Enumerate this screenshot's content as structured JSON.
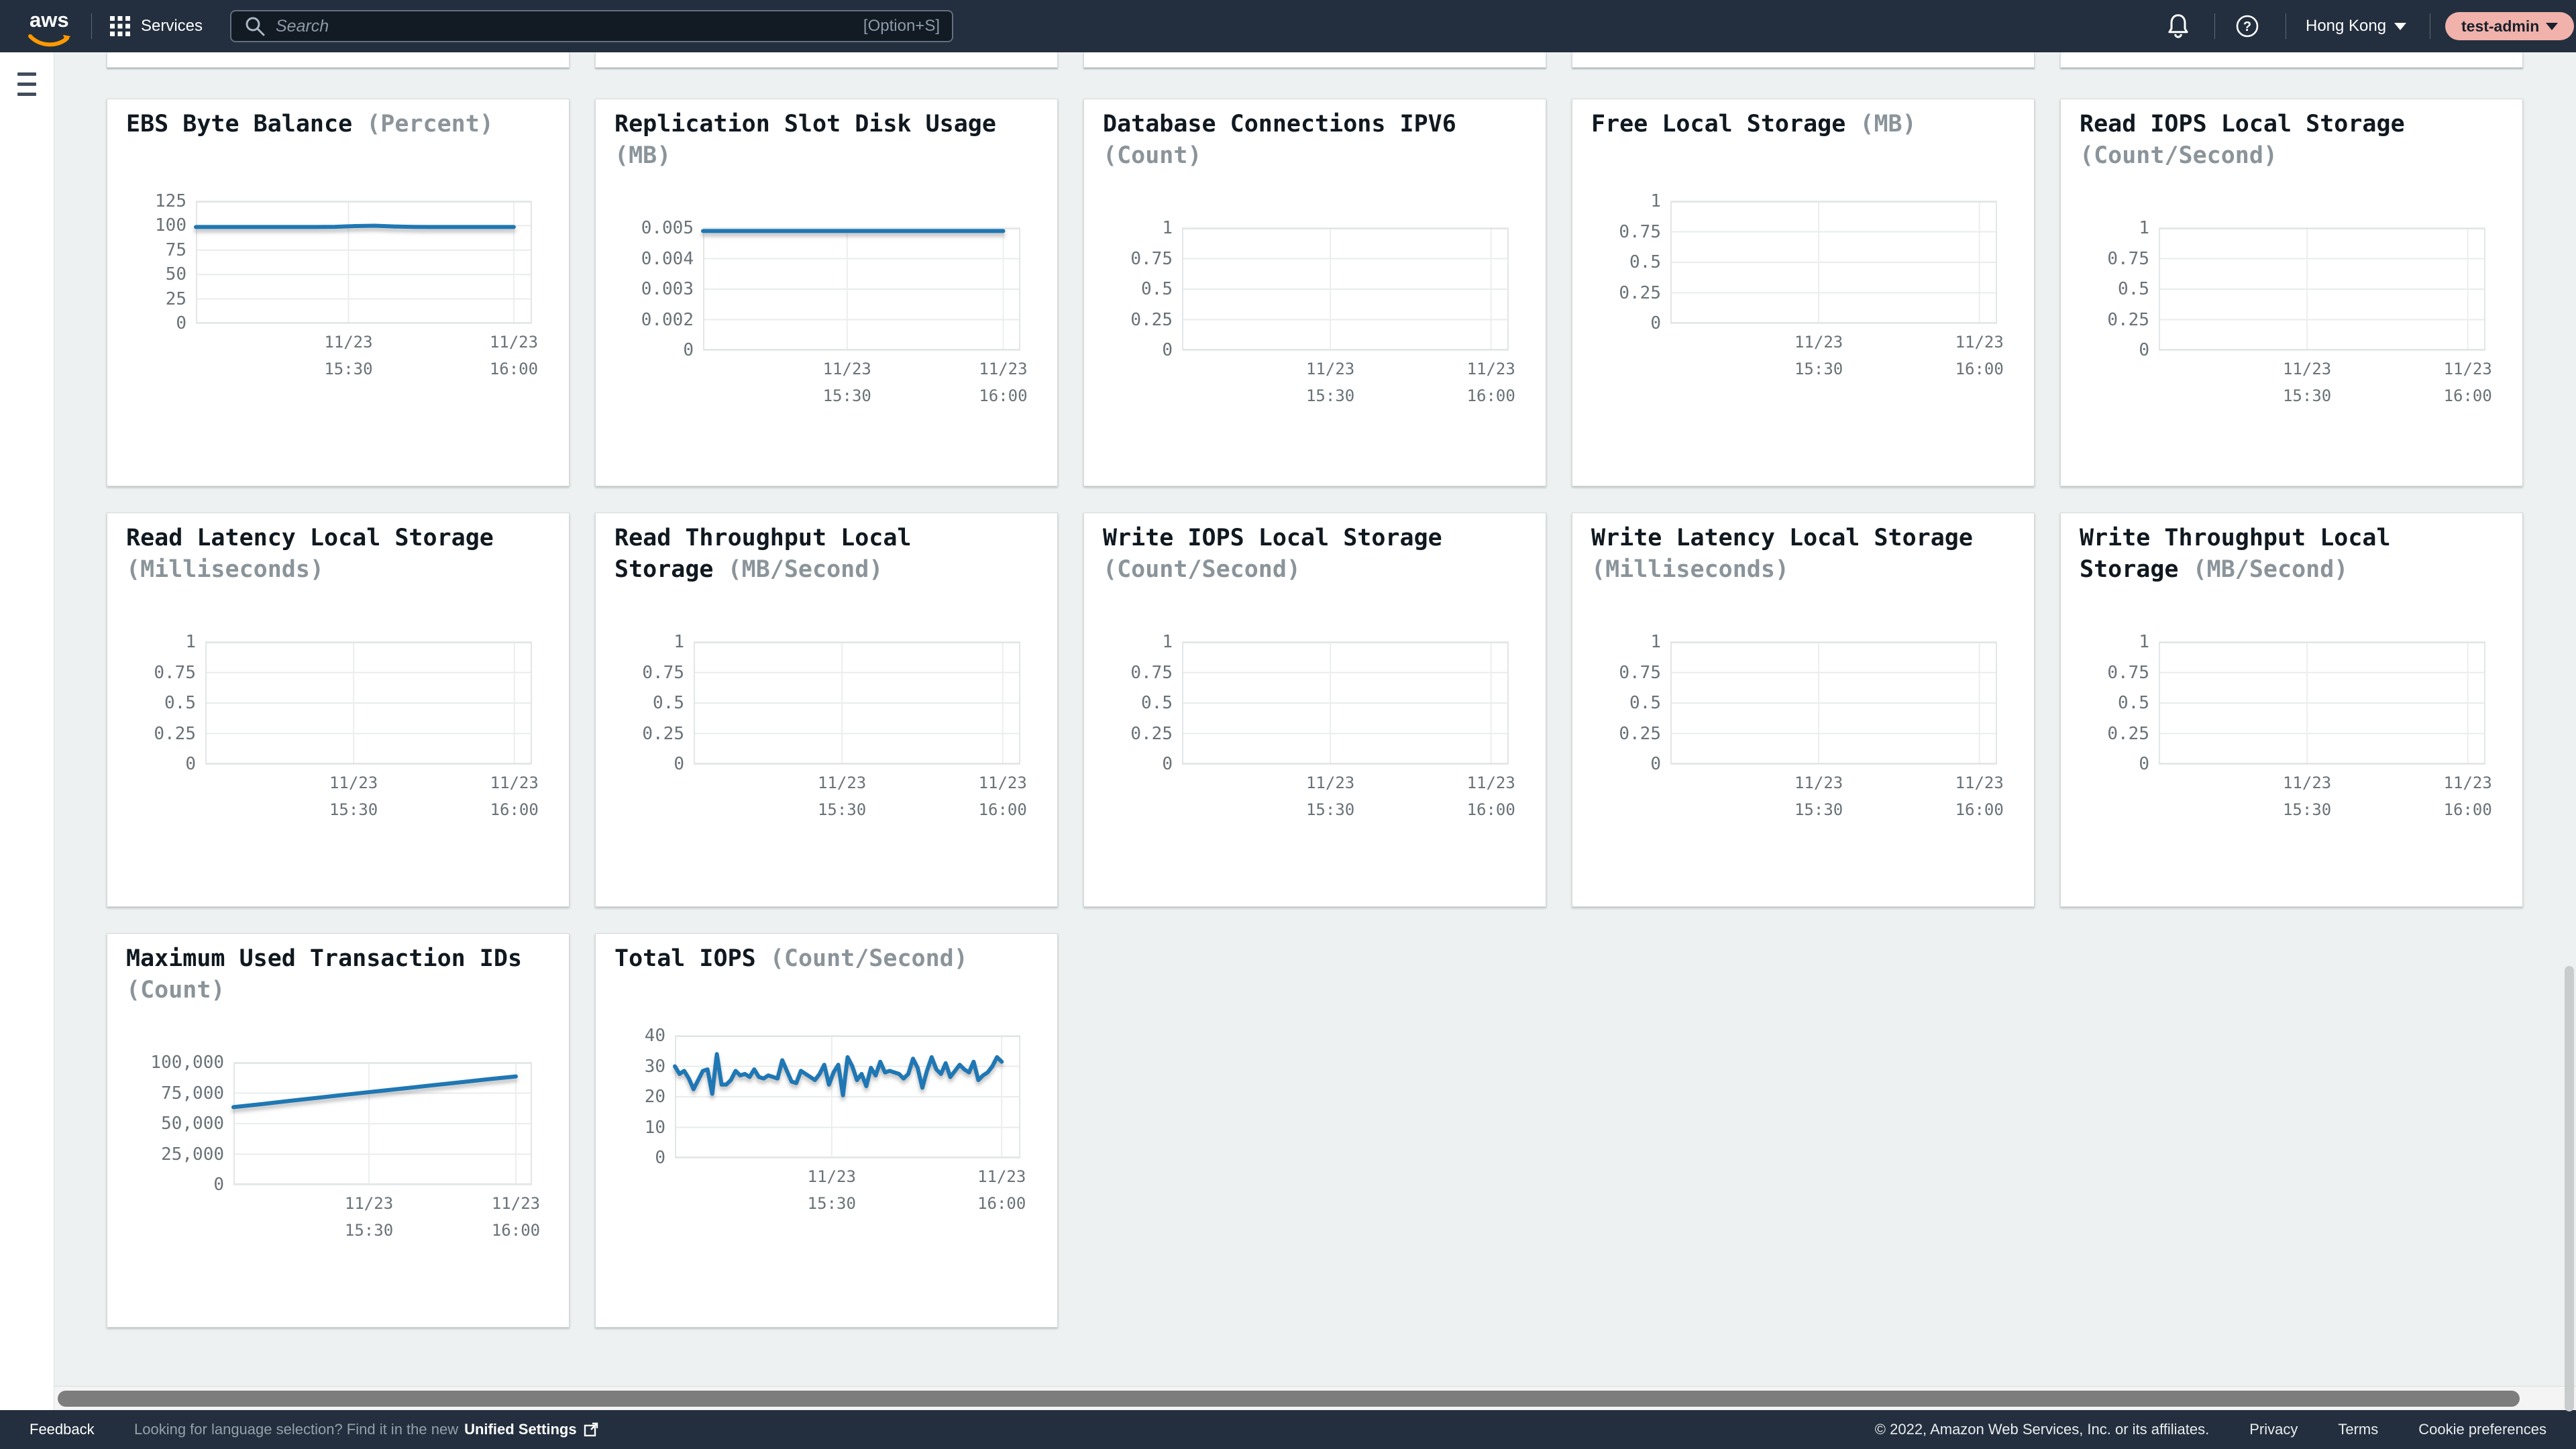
{
  "nav": {
    "logo_text": "aws",
    "services_label": "Services",
    "search_placeholder": "Search",
    "search_shortcut": "[Option+S]",
    "region_label": "Hong Kong",
    "user_label": "test-admin"
  },
  "footer": {
    "feedback": "Feedback",
    "language_hint": "Looking for language selection? Find it in the new",
    "language_link": "Unified Settings",
    "copyright": "© 2022, Amazon Web Services, Inc. or its affiliates.",
    "privacy": "Privacy",
    "terms": "Terms",
    "cookie": "Cookie preferences"
  },
  "colors": {
    "nav_bg": "#232f3e",
    "page_bg": "#eef1f1",
    "line_accent": "#1f77b4",
    "user_pill_bg": "#f1b2ab",
    "swoosh_orange": "#ff9900"
  },
  "chart_data": {
    "type": "line",
    "x_ticks": [
      {
        "date": "11/23",
        "time": "15:30"
      },
      {
        "date": "11/23",
        "time": "16:00"
      }
    ],
    "items": [
      {
        "title": "EBS Byte Balance",
        "unit": "(Percent)",
        "y_ticks": [
          "125",
          "100",
          "75",
          "50",
          "25",
          "0"
        ],
        "y_max": 125,
        "values": [
          98.6,
          98.6,
          98.6,
          98.6,
          98.6,
          98.6,
          98.6,
          98.8,
          99.6,
          99.9,
          99.2,
          98.7,
          98.6,
          98.6,
          98.6,
          98.6,
          98.6
        ]
      },
      {
        "title": "Replication Slot Disk Usage",
        "unit": "(MB)",
        "y_ticks": [
          "0.005",
          "0.004",
          "0.003",
          "0.002",
          "0"
        ],
        "y_max": 0.005,
        "values": [
          0.00488,
          0.00488,
          0.00488,
          0.00488,
          0.00488,
          0.00488,
          0.00488,
          0.00488,
          0.00488,
          0.00488,
          0.00488,
          0.00488,
          0.00488
        ]
      },
      {
        "title": "Database Connections IPV6",
        "unit": "(Count)",
        "y_ticks": [
          "1",
          "0.75",
          "0.5",
          "0.25",
          "0"
        ],
        "y_max": 1,
        "values": []
      },
      {
        "title": "Free Local Storage",
        "unit": "(MB)",
        "y_ticks": [
          "1",
          "0.75",
          "0.5",
          "0.25",
          "0"
        ],
        "y_max": 1,
        "values": []
      },
      {
        "title": "Read IOPS Local Storage",
        "unit": "(Count/Second)",
        "y_ticks": [
          "1",
          "0.75",
          "0.5",
          "0.25",
          "0"
        ],
        "y_max": 1,
        "values": []
      },
      {
        "title": "Read Latency Local Storage",
        "unit": "(Milliseconds)",
        "y_ticks": [
          "1",
          "0.75",
          "0.5",
          "0.25",
          "0"
        ],
        "y_max": 1,
        "values": []
      },
      {
        "title": "Read Throughput Local Storage",
        "unit": "(MB/Second)",
        "y_ticks": [
          "1",
          "0.75",
          "0.5",
          "0.25",
          "0"
        ],
        "y_max": 1,
        "values": []
      },
      {
        "title": "Write IOPS Local Storage",
        "unit": "(Count/Second)",
        "y_ticks": [
          "1",
          "0.75",
          "0.5",
          "0.25",
          "0"
        ],
        "y_max": 1,
        "values": []
      },
      {
        "title": "Write Latency Local Storage",
        "unit": "(Milliseconds)",
        "y_ticks": [
          "1",
          "0.75",
          "0.5",
          "0.25",
          "0"
        ],
        "y_max": 1,
        "values": []
      },
      {
        "title": "Write Throughput Local Storage",
        "unit": "(MB/Second)",
        "y_ticks": [
          "1",
          "0.75",
          "0.5",
          "0.25",
          "0"
        ],
        "y_max": 1,
        "values": []
      },
      {
        "title": "Maximum Used Transaction IDs",
        "unit": "(Count)",
        "y_ticks": [
          "100,000",
          "75,000",
          "50,000",
          "25,000",
          "0"
        ],
        "y_max": 100000,
        "values": [
          63500,
          66000,
          68700,
          71200,
          73800,
          76300,
          78800,
          81300,
          83800,
          86300,
          88700
        ]
      },
      {
        "title": "Total IOPS",
        "unit": "(Count/Second)",
        "y_ticks": [
          "40",
          "30",
          "20",
          "10",
          "0"
        ],
        "y_max": 40,
        "values": [
          30,
          27.5,
          28.5,
          26,
          22.5,
          25.5,
          28.5,
          29,
          21,
          34,
          24,
          24,
          25.5,
          28.5,
          27,
          27.5,
          26.5,
          29,
          26.5,
          26,
          27,
          26.5,
          26,
          32,
          28.5,
          25,
          24.5,
          28.5,
          27.5,
          26.5,
          25.5,
          27.5,
          30.5,
          24,
          28,
          30.5,
          20.5,
          33,
          30,
          25.5,
          27.5,
          23.5,
          29.5,
          27,
          31.5,
          28,
          28.5,
          28,
          27.5,
          26,
          27.5,
          32.5,
          29.5,
          23,
          28.5,
          33,
          29,
          27.5,
          31,
          26.5,
          28.5,
          30.5,
          29,
          28,
          31.5,
          25.5,
          27,
          28,
          30,
          33,
          31.5
        ]
      }
    ]
  }
}
